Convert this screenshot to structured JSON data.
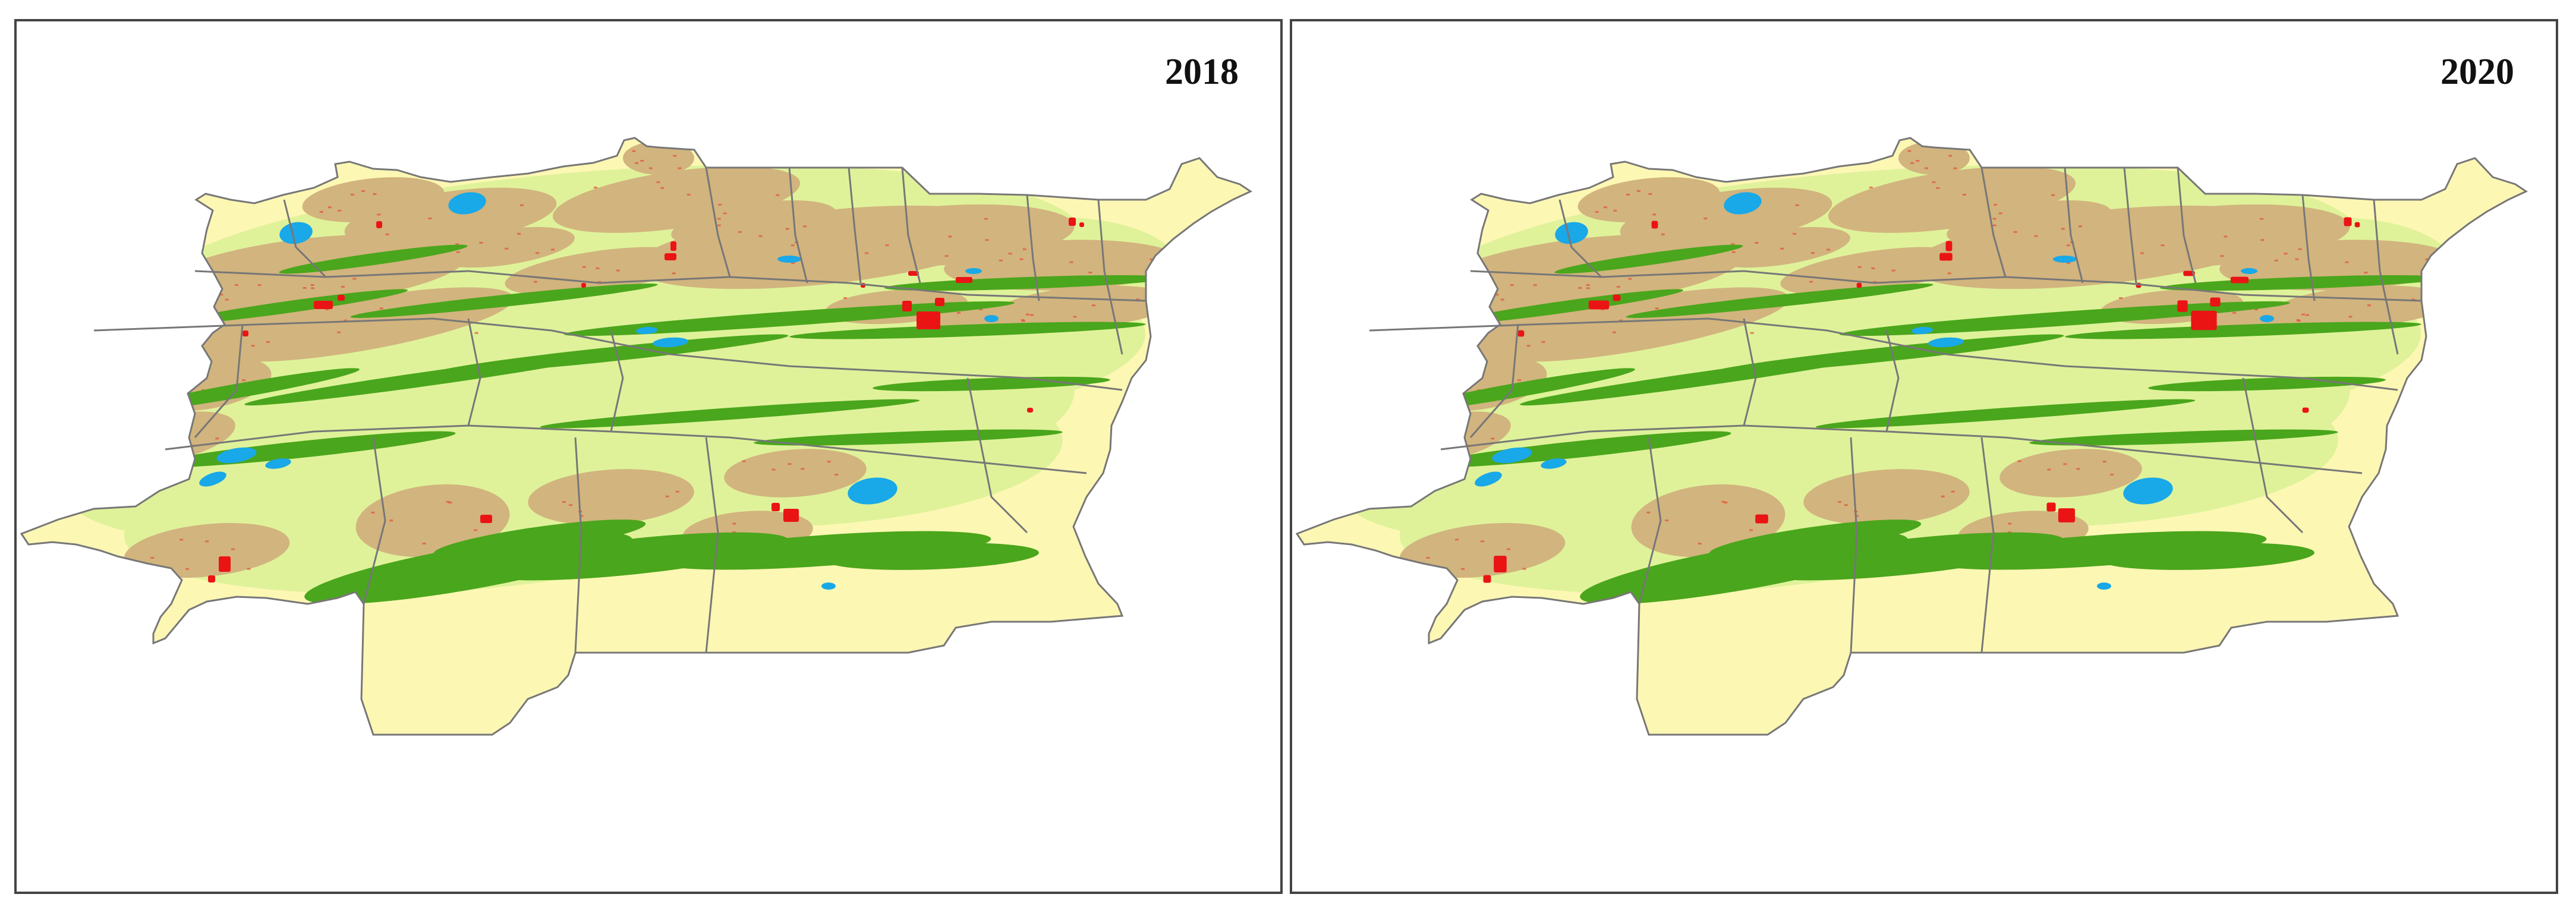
{
  "panels": [
    {
      "year": "2018"
    },
    {
      "year": "2020"
    }
  ],
  "colors": {
    "desert": "#fdf7b4",
    "grassland": "#dff29a",
    "farmland": "#d2b47e",
    "forest": "#4aa61c",
    "urban": "#ea1414",
    "water": "#19a8e8",
    "boundary": "#777777",
    "frame": "#444444"
  },
  "legend_icons": [
    "desert-area",
    "grassland-area",
    "farmland-area",
    "forest-area",
    "urban-area",
    "water-body",
    "county-boundary"
  ]
}
